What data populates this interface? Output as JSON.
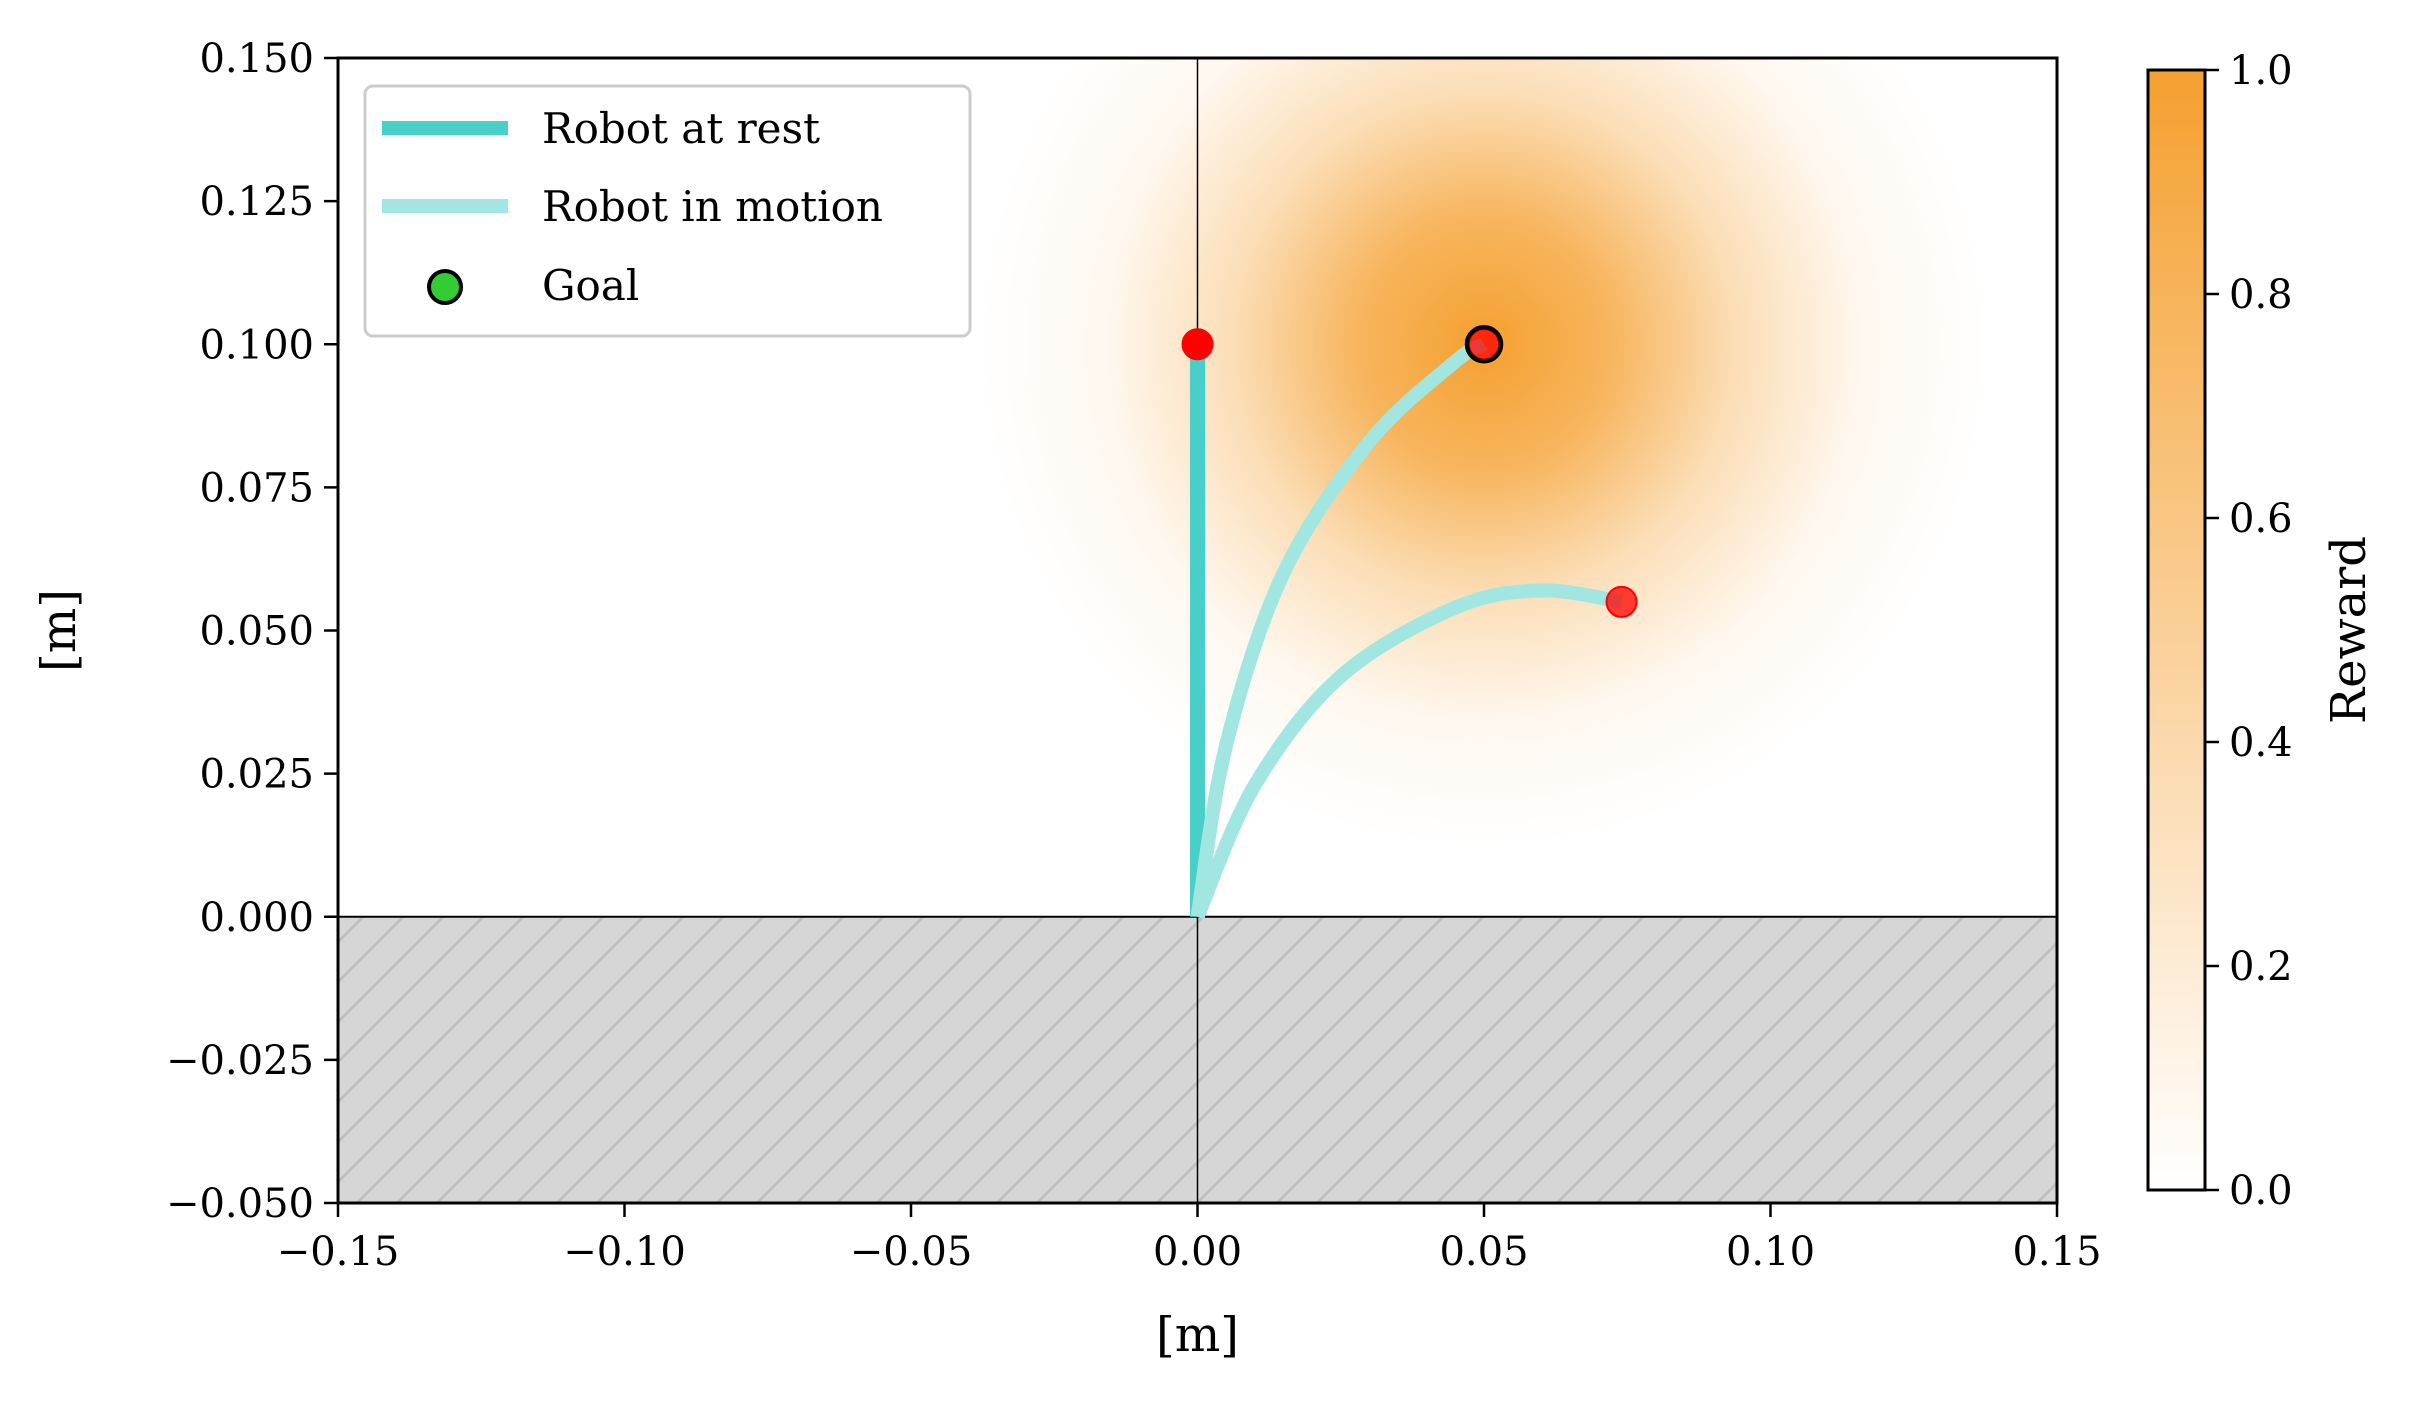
{
  "chart_data": {
    "type": "line",
    "title": "",
    "xlabel": "[m]",
    "ylabel": "[m]",
    "xlim": [
      -0.15,
      0.15
    ],
    "ylim": [
      -0.05,
      0.15
    ],
    "xticks": [
      "−0.15",
      "−0.10",
      "−0.05",
      "0.00",
      "0.05",
      "0.10",
      "0.15"
    ],
    "xtick_values": [
      -0.15,
      -0.1,
      -0.05,
      0.0,
      0.05,
      0.1,
      0.15
    ],
    "yticks": [
      "−0.050",
      "−0.025",
      "0.000",
      "0.025",
      "0.050",
      "0.075",
      "0.100",
      "0.125",
      "0.150"
    ],
    "ytick_values": [
      -0.05,
      -0.025,
      0.0,
      0.025,
      0.05,
      0.075,
      0.1,
      0.125,
      0.15
    ],
    "grid": false,
    "legend_position": "top-left",
    "legend": [
      "Robot at rest",
      "Robot in motion",
      "Goal"
    ],
    "series": [
      {
        "name": "Robot at rest",
        "style": "solid",
        "color": "#48cfc9",
        "x": [
          0.0,
          0.0
        ],
        "y": [
          0.0,
          0.1
        ]
      },
      {
        "name": "Robot in motion",
        "style": "light",
        "color": "#a2e6e2",
        "x": [
          0.0,
          0.005,
          0.015,
          0.03,
          0.045,
          0.05
        ],
        "y": [
          0.0,
          0.03,
          0.06,
          0.083,
          0.097,
          0.1
        ]
      },
      {
        "name": "Robot in motion",
        "style": "light",
        "color": "#a2e6e2",
        "x": [
          0.0,
          0.01,
          0.025,
          0.045,
          0.06,
          0.074
        ],
        "y": [
          0.0,
          0.023,
          0.042,
          0.054,
          0.057,
          0.055
        ]
      }
    ],
    "tips": [
      {
        "x": 0.0,
        "y": 0.1,
        "color": "#ff0000"
      },
      {
        "x": 0.05,
        "y": 0.1,
        "color": "#ff0000"
      },
      {
        "x": 0.074,
        "y": 0.055,
        "color": "#ff0000"
      }
    ],
    "goal": {
      "x": 0.05,
      "y": 0.1,
      "color": "#32cd32"
    },
    "reward_field": {
      "center_x": 0.05,
      "center_y": 0.1,
      "spread": 0.04,
      "color": "#f5a030"
    },
    "ground": {
      "y_top": 0.0,
      "fill": "#d6d6d6",
      "hatch": "#bdbdbd"
    },
    "colorbar": {
      "label": "Reward",
      "min": 0.0,
      "max": 1.0,
      "ticks": [
        "0.0",
        "0.2",
        "0.4",
        "0.6",
        "0.8",
        "1.0"
      ],
      "tick_values": [
        0.0,
        0.2,
        0.4,
        0.6,
        0.8,
        1.0
      ],
      "color_low": "#ffffff",
      "color_high": "#f5a030"
    }
  }
}
